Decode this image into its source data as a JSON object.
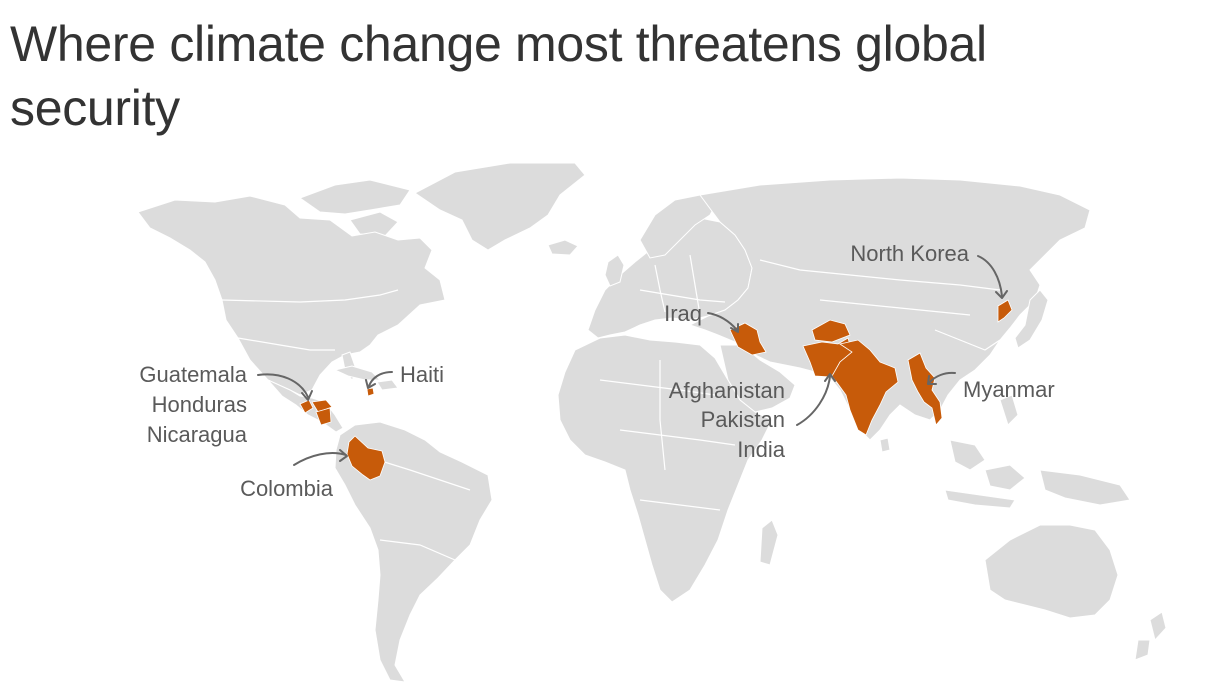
{
  "title": "Where climate change most threatens global security",
  "colors": {
    "land": "#dcdcdc",
    "highlight": "#c75b0a",
    "text": "#333333",
    "label": "#5a5a5a",
    "arrow": "#666666"
  },
  "labels": {
    "guatemala": "Guatemala",
    "honduras": "Honduras",
    "nicaragua": "Nicaragua",
    "haiti": "Haiti",
    "colombia": "Colombia",
    "iraq": "Iraq",
    "afghanistan": "Afghanistan",
    "pakistan": "Pakistan",
    "india": "India",
    "north_korea": "North Korea",
    "myanmar": "Myanmar"
  },
  "highlighted_countries": [
    "Guatemala",
    "Honduras",
    "Nicaragua",
    "Haiti",
    "Colombia",
    "Iraq",
    "Afghanistan",
    "Pakistan",
    "India",
    "North Korea",
    "Myanmar"
  ]
}
